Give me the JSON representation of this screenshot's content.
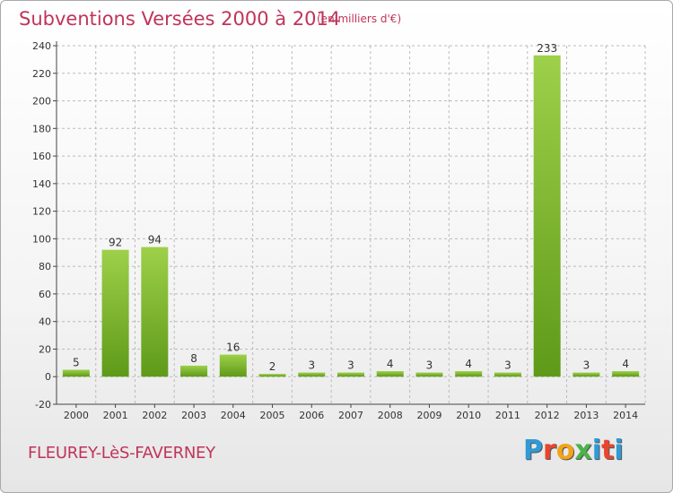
{
  "title": "Subventions Versées 2000 à 2014",
  "unit_note": "(en milliers d'€)",
  "commune": "FLEUREY-LèS-FAVERNEY",
  "brand": {
    "letters": [
      "P",
      "r",
      "o",
      "x",
      "i",
      "t",
      "i"
    ],
    "colors": [
      "#2f9ad6",
      "#e8452e",
      "#f2a417",
      "#4bb34a",
      "#2f9ad6",
      "#e8452e",
      "#2f9ad6"
    ]
  },
  "colors": {
    "bar_top": "#9ed04a",
    "bar_bottom": "#5e9a18",
    "title": "#c0345a",
    "grid": "#bbbbbb"
  },
  "chart_data": {
    "type": "bar",
    "categories": [
      "2000",
      "2001",
      "2002",
      "2003",
      "2004",
      "2005",
      "2006",
      "2007",
      "2008",
      "2009",
      "2010",
      "2011",
      "2012",
      "2013",
      "2014"
    ],
    "values": [
      5,
      92,
      94,
      8,
      16,
      2,
      3,
      3,
      4,
      3,
      4,
      3,
      233,
      3,
      4
    ],
    "ylim": [
      -20,
      240
    ],
    "yticks": [
      -20,
      0,
      20,
      40,
      60,
      80,
      100,
      120,
      140,
      160,
      180,
      200,
      220,
      240
    ],
    "grid": "horizontal dashed",
    "legend": "none"
  }
}
